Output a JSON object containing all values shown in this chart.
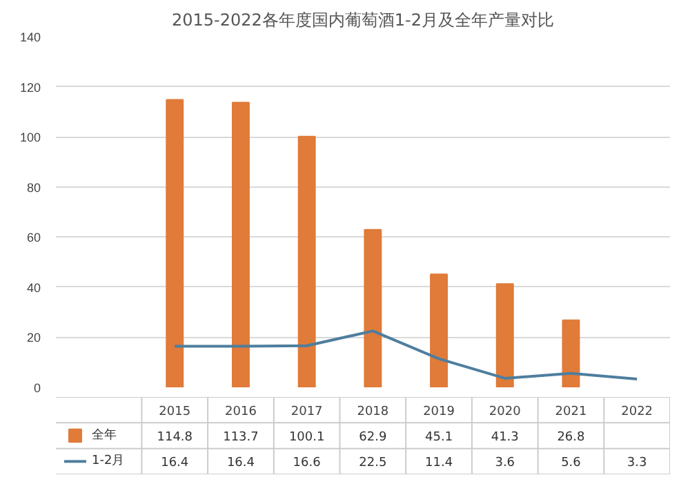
{
  "chart_data": {
    "type": "bar",
    "title": "2015-2022各年度国内葡萄酒1-2月及全年产量对比",
    "categories": [
      "2015",
      "2016",
      "2017",
      "2018",
      "2019",
      "2020",
      "2021",
      "2022"
    ],
    "series": [
      {
        "name": "全年",
        "color": "#e07b39",
        "values": [
          114.8,
          113.7,
          100.1,
          62.9,
          45.1,
          41.3,
          26.8,
          null
        ]
      },
      {
        "name": "1-2月",
        "type": "line",
        "color": "#4e7e9e",
        "values": [
          16.4,
          16.4,
          16.6,
          22.5,
          11.4,
          3.6,
          5.6,
          3.3
        ]
      }
    ],
    "ylim": [
      0,
      140
    ],
    "yticks": [
      0,
      20,
      40,
      60,
      80,
      100,
      120,
      140
    ],
    "grid": "y",
    "legend": "bottom",
    "data_labels": true,
    "marker": "none",
    "line_style": "solid"
  }
}
